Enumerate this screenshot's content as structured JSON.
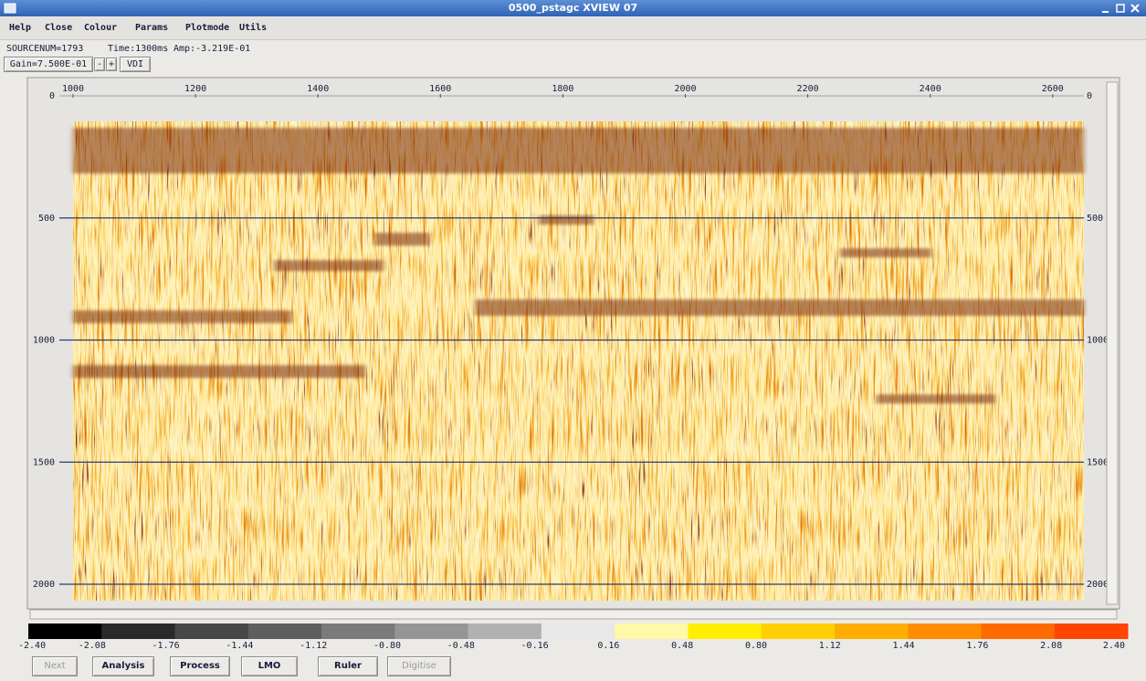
{
  "window": {
    "title": "0500_pstagc XVIEW 07"
  },
  "menu": [
    "Help",
    "Close",
    "Colour",
    "Params",
    "Plotmode",
    "Utils"
  ],
  "status": {
    "source": "SOURCENUM=1793",
    "time": "Time:1300ms",
    "amp": "Amp:-3.219E-01"
  },
  "gain": {
    "label": "Gain=7.500E-01",
    "minus": "-",
    "plus": "+",
    "mode": "VDI"
  },
  "plot": {
    "x_ticks": [
      "1000",
      "1200",
      "1400",
      "1600",
      "1800",
      "2000",
      "2200",
      "2400",
      "2600"
    ],
    "y_ticks": [
      "0",
      "500",
      "1000",
      "1500",
      "2000"
    ]
  },
  "colorbar": {
    "labels": [
      "-2.40",
      "-2.08",
      "-1.76",
      "-1.44",
      "-1.12",
      "-0.80",
      "-0.48",
      "-0.16",
      "0.16",
      "0.48",
      "0.80",
      "1.12",
      "1.44",
      "1.76",
      "2.08",
      "2.40"
    ],
    "colors": [
      "#000000",
      "#2a2a2a",
      "#474747",
      "#5e5e5e",
      "#7a7a7a",
      "#959595",
      "#b1b1b1",
      "#e8e8e8",
      "#fff8a8",
      "#ffee00",
      "#ffcf00",
      "#ffae00",
      "#ff8c00",
      "#ff6a00",
      "#ff4500"
    ]
  },
  "buttons": [
    "Next",
    "Analysis",
    "Process",
    "LMO",
    "Ruler",
    "Digitise"
  ]
}
